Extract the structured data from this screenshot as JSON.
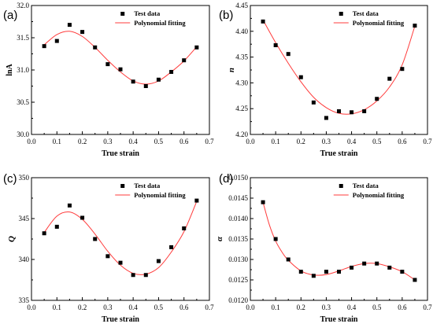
{
  "chart_data": [
    {
      "type": "scatter",
      "panel_label": "(a)",
      "xlabel": "True strain",
      "ylabel": "lnA",
      "xlim": [
        0.0,
        0.7
      ],
      "ylim": [
        30.0,
        32.0
      ],
      "xticks": [
        "0.0",
        "0.1",
        "0.2",
        "0.3",
        "0.4",
        "0.5",
        "0.6",
        "0.7"
      ],
      "yticks": [
        "30.0",
        "30.5",
        "31.0",
        "31.5",
        "32.0"
      ],
      "legend_position": "top-right",
      "series": [
        {
          "name": "Test data",
          "kind": "points",
          "x": [
            0.05,
            0.1,
            0.15,
            0.2,
            0.25,
            0.3,
            0.35,
            0.4,
            0.45,
            0.5,
            0.55,
            0.6,
            0.65
          ],
          "y": [
            31.37,
            31.45,
            31.7,
            31.59,
            31.35,
            31.09,
            31.01,
            30.82,
            30.75,
            30.85,
            30.97,
            31.15,
            31.35
          ]
        },
        {
          "name": "Polynomial fitting",
          "kind": "line",
          "color": "#ff3b3b",
          "x": [
            0.05,
            0.1,
            0.15,
            0.2,
            0.25,
            0.3,
            0.35,
            0.4,
            0.45,
            0.5,
            0.55,
            0.6,
            0.65
          ],
          "y": [
            31.39,
            31.55,
            31.6,
            31.52,
            31.35,
            31.15,
            30.97,
            30.83,
            30.78,
            30.83,
            30.97,
            31.14,
            31.36
          ]
        }
      ]
    },
    {
      "type": "scatter",
      "panel_label": "(b)",
      "xlabel": "True strain",
      "ylabel": "n",
      "xlim": [
        0.0,
        0.7
      ],
      "ylim": [
        4.2,
        4.45
      ],
      "xticks": [
        "0.0",
        "0.1",
        "0.2",
        "0.3",
        "0.4",
        "0.5",
        "0.6",
        "0.7"
      ],
      "yticks": [
        "4.20",
        "4.25",
        "4.30",
        "4.35",
        "4.40",
        "4.45"
      ],
      "legend_position": "top-right",
      "series": [
        {
          "name": "Test data",
          "kind": "points",
          "x": [
            0.05,
            0.1,
            0.15,
            0.2,
            0.25,
            0.3,
            0.35,
            0.4,
            0.45,
            0.5,
            0.55,
            0.6,
            0.65
          ],
          "y": [
            4.419,
            4.373,
            4.356,
            4.311,
            4.262,
            4.232,
            4.245,
            4.243,
            4.245,
            4.269,
            4.308,
            4.327,
            4.411
          ]
        },
        {
          "name": "Polynomial fitting",
          "kind": "line",
          "color": "#ff3b3b",
          "x": [
            0.05,
            0.1,
            0.15,
            0.2,
            0.25,
            0.3,
            0.35,
            0.4,
            0.45,
            0.5,
            0.55,
            0.6,
            0.65
          ],
          "y": [
            4.422,
            4.378,
            4.338,
            4.302,
            4.272,
            4.252,
            4.241,
            4.24,
            4.248,
            4.265,
            4.292,
            4.335,
            4.41
          ]
        }
      ]
    },
    {
      "type": "scatter",
      "panel_label": "(c)",
      "xlabel": "True strain",
      "ylabel": "Q",
      "xlim": [
        0.0,
        0.7
      ],
      "ylim": [
        335,
        350
      ],
      "xticks": [
        "0.0",
        "0.1",
        "0.2",
        "0.3",
        "0.4",
        "0.5",
        "0.6",
        "0.7"
      ],
      "yticks": [
        "335",
        "340",
        "345",
        "350"
      ],
      "legend_position": "top-right",
      "series": [
        {
          "name": "Test data",
          "kind": "points",
          "x": [
            0.05,
            0.1,
            0.15,
            0.2,
            0.25,
            0.3,
            0.35,
            0.4,
            0.45,
            0.5,
            0.55,
            0.6,
            0.65
          ],
          "y": [
            343.2,
            344.0,
            346.6,
            345.1,
            342.5,
            340.4,
            339.6,
            338.1,
            338.1,
            339.8,
            341.5,
            343.8,
            347.2
          ]
        },
        {
          "name": "Polynomial fitting",
          "kind": "line",
          "color": "#ff3b3b",
          "x": [
            0.05,
            0.1,
            0.15,
            0.2,
            0.25,
            0.3,
            0.35,
            0.4,
            0.45,
            0.5,
            0.55,
            0.6,
            0.65
          ],
          "y": [
            343.3,
            345.3,
            345.8,
            344.9,
            343.1,
            341.0,
            339.3,
            338.3,
            338.2,
            339.0,
            340.9,
            343.4,
            347.1
          ]
        }
      ]
    },
    {
      "type": "scatter",
      "panel_label": "(d)",
      "xlabel": "True strain",
      "ylabel": "α",
      "xlim": [
        0.0,
        0.7
      ],
      "ylim": [
        0.012,
        0.015
      ],
      "xticks": [
        "0.0",
        "0.1",
        "0.2",
        "0.3",
        "0.4",
        "0.5",
        "0.6",
        "0.7"
      ],
      "yticks": [
        "0.0120",
        "0.0125",
        "0.0130",
        "0.0135",
        "0.0140",
        "0.0145",
        "0.0150"
      ],
      "legend_position": "top-right",
      "series": [
        {
          "name": "Test data",
          "kind": "points",
          "x": [
            0.05,
            0.1,
            0.15,
            0.2,
            0.25,
            0.3,
            0.35,
            0.4,
            0.45,
            0.5,
            0.55,
            0.6,
            0.65
          ],
          "y": [
            0.0144,
            0.0135,
            0.013,
            0.0127,
            0.0126,
            0.0127,
            0.0127,
            0.0128,
            0.0129,
            0.0129,
            0.0128,
            0.0127,
            0.0125
          ]
        },
        {
          "name": "Polynomial fitting",
          "kind": "line",
          "color": "#ff3b3b",
          "x": [
            0.05,
            0.075,
            0.1,
            0.125,
            0.15,
            0.2,
            0.25,
            0.3,
            0.35,
            0.4,
            0.45,
            0.5,
            0.55,
            0.6,
            0.65
          ],
          "y": [
            0.0144,
            0.01385,
            0.01345,
            0.01318,
            0.01298,
            0.01272,
            0.01262,
            0.01263,
            0.01272,
            0.01283,
            0.0129,
            0.0129,
            0.01282,
            0.0127,
            0.0125
          ]
        }
      ]
    }
  ]
}
